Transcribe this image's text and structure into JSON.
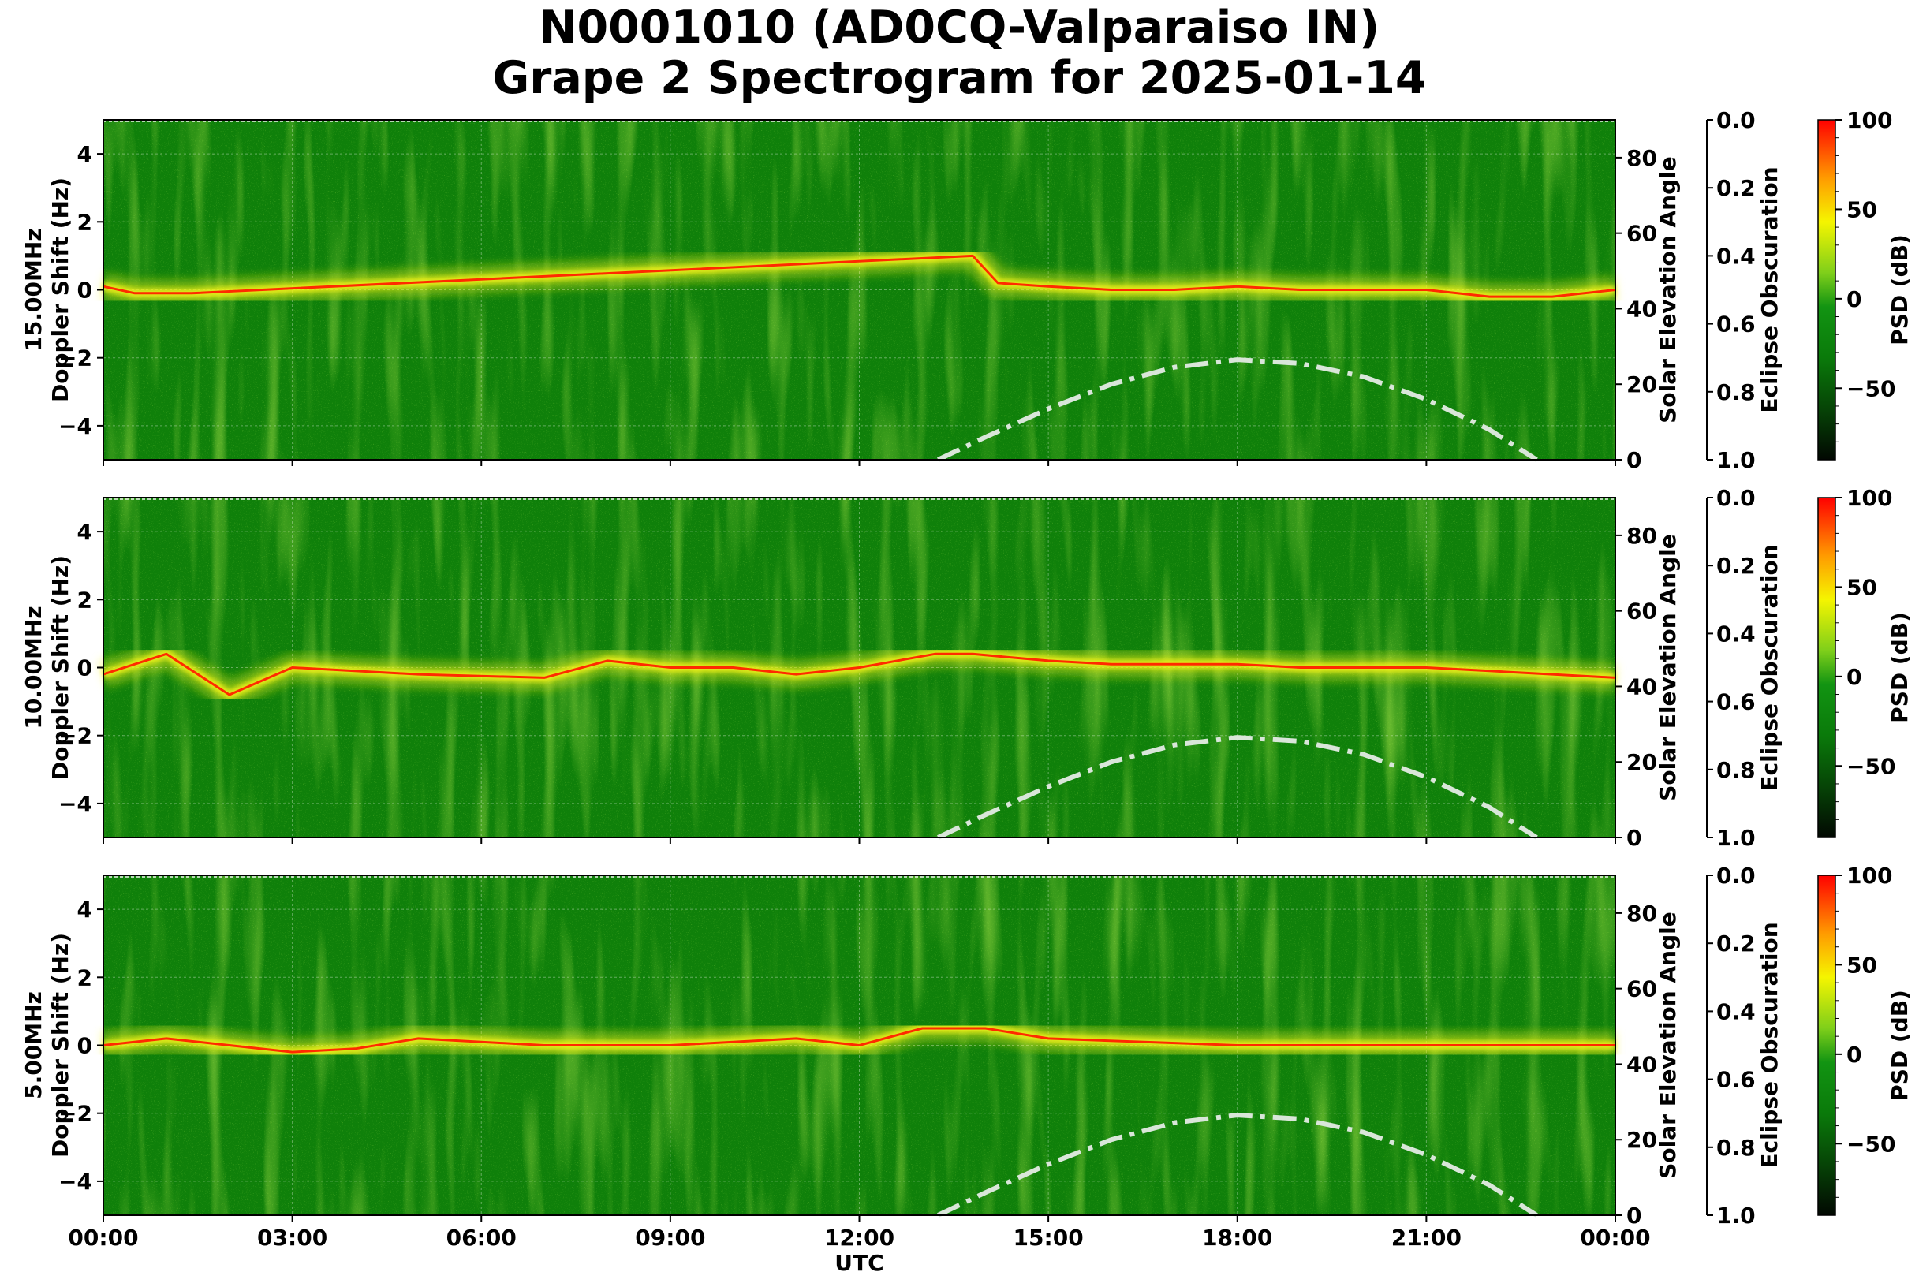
{
  "title_line1": "N0001010 (AD0CQ-Valparaiso IN)",
  "title_line2": "Grape 2 Spectrogram for 2025-01-14",
  "colors": {
    "background_green": "#0f800a",
    "trace_yellow": "#f2f21a",
    "trace_red": "#ff2a00",
    "elevation_curve": "#d9e6d9"
  },
  "chart_data": {
    "type": "heatmap",
    "xlabel": "UTC",
    "x_ticks": [
      "00:00",
      "03:00",
      "06:00",
      "09:00",
      "12:00",
      "15:00",
      "18:00",
      "21:00",
      "00:00"
    ],
    "x_range_hours": [
      0,
      24
    ],
    "ylabel_doppler": "Doppler Shift (Hz)",
    "y_range": [
      -5,
      5
    ],
    "y_ticks": [
      "−4",
      "−2",
      "0",
      "2",
      "4"
    ],
    "ylabel_elevation": "Solar Elevation Angle",
    "elevation_ticks": [
      "0",
      "20",
      "40",
      "60",
      "80"
    ],
    "elevation_range": [
      0,
      90
    ],
    "ylabel_eclipse": "Eclipse Obscuration",
    "eclipse_ticks": [
      "0.0",
      "0.2",
      "0.4",
      "0.6",
      "0.8",
      "1.0"
    ],
    "colorbar_label": "PSD (dB)",
    "colorbar_ticks": [
      "100",
      "50",
      "0",
      "−50"
    ],
    "colorbar_range": [
      -90,
      100
    ],
    "grid": true,
    "solar_elevation_curve": {
      "x_hours": [
        13.25,
        14,
        15,
        16,
        17,
        18,
        19,
        20,
        21,
        22,
        22.75
      ],
      "y_degrees": [
        0,
        6,
        13.5,
        20,
        24.5,
        26.5,
        25.5,
        22,
        16,
        8,
        0
      ]
    },
    "panels": [
      {
        "label": "15.00MHz",
        "carrier_trace": {
          "x_hours": [
            0,
            0.5,
            1,
            1.4,
            13.8,
            14.2,
            15,
            16,
            17,
            18,
            19,
            20,
            21,
            22,
            23,
            24
          ],
          "y_hz": [
            0.1,
            -0.1,
            -0.1,
            -0.1,
            1.0,
            0.2,
            0.1,
            0.0,
            0.0,
            0.1,
            0.0,
            0.0,
            0.0,
            -0.2,
            -0.2,
            0.0
          ]
        }
      },
      {
        "label": "10.00MHz",
        "carrier_trace": {
          "x_hours": [
            0,
            1,
            2,
            3,
            5,
            7,
            8,
            9,
            10,
            11,
            12,
            13.2,
            13.8,
            15,
            16,
            17,
            18,
            19,
            20,
            21,
            22,
            23,
            24
          ],
          "y_hz": [
            -0.2,
            0.4,
            -0.8,
            0.0,
            -0.2,
            -0.3,
            0.2,
            0.0,
            0.0,
            -0.2,
            0.0,
            0.4,
            0.4,
            0.2,
            0.1,
            0.1,
            0.1,
            0.0,
            0.0,
            0.0,
            -0.1,
            -0.2,
            -0.3
          ]
        }
      },
      {
        "label": "5.00MHz",
        "carrier_trace": {
          "x_hours": [
            0,
            1,
            2,
            3,
            4,
            5,
            6,
            7,
            8,
            9,
            10,
            11,
            12,
            13,
            14,
            15,
            18,
            22,
            24
          ],
          "y_hz": [
            0.0,
            0.2,
            0.0,
            -0.2,
            -0.1,
            0.2,
            0.1,
            0.0,
            0.0,
            0.0,
            0.1,
            0.2,
            0.0,
            0.5,
            0.5,
            0.2,
            0.0,
            0.0,
            0.0
          ]
        }
      }
    ]
  }
}
